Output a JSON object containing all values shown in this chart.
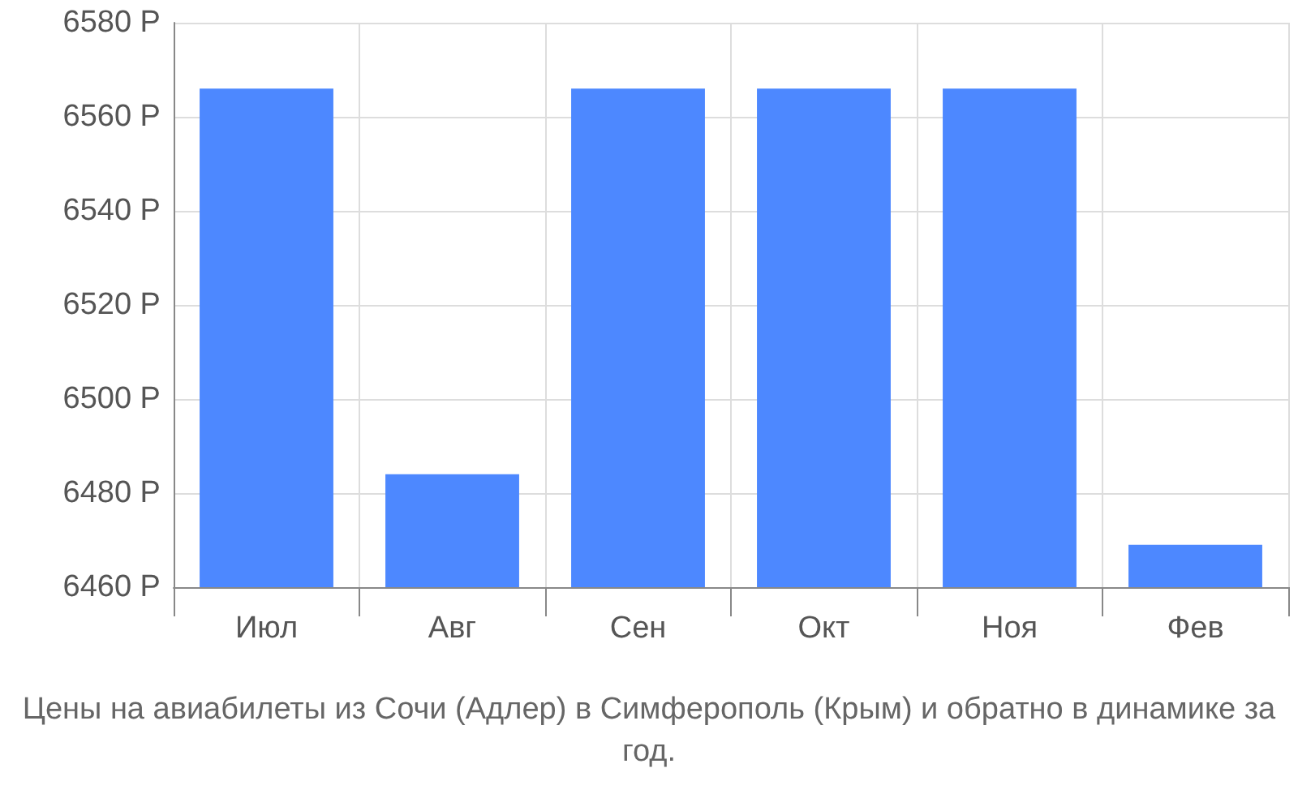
{
  "chart_data": {
    "type": "bar",
    "title": "Цены на авиабилеты из Сочи (Адлер) в Симферополь (Крым) и обратно в динамике за год.",
    "categories": [
      "Июл",
      "Авг",
      "Сен",
      "Окт",
      "Ноя",
      "Фев"
    ],
    "values": [
      6566,
      6484,
      6566,
      6566,
      6566,
      6469
    ],
    "color": "#4d88ff",
    "ylim": [
      6460,
      6580
    ],
    "yticks": [
      {
        "value": 6460,
        "label": "6460 Р"
      },
      {
        "value": 6480,
        "label": "6480 Р"
      },
      {
        "value": 6500,
        "label": "6500 Р"
      },
      {
        "value": 6520,
        "label": "6520 Р"
      },
      {
        "value": 6540,
        "label": "6540 Р"
      },
      {
        "value": 6560,
        "label": "6560 Р"
      },
      {
        "value": 6580,
        "label": "6580 Р"
      }
    ],
    "grid": true
  }
}
